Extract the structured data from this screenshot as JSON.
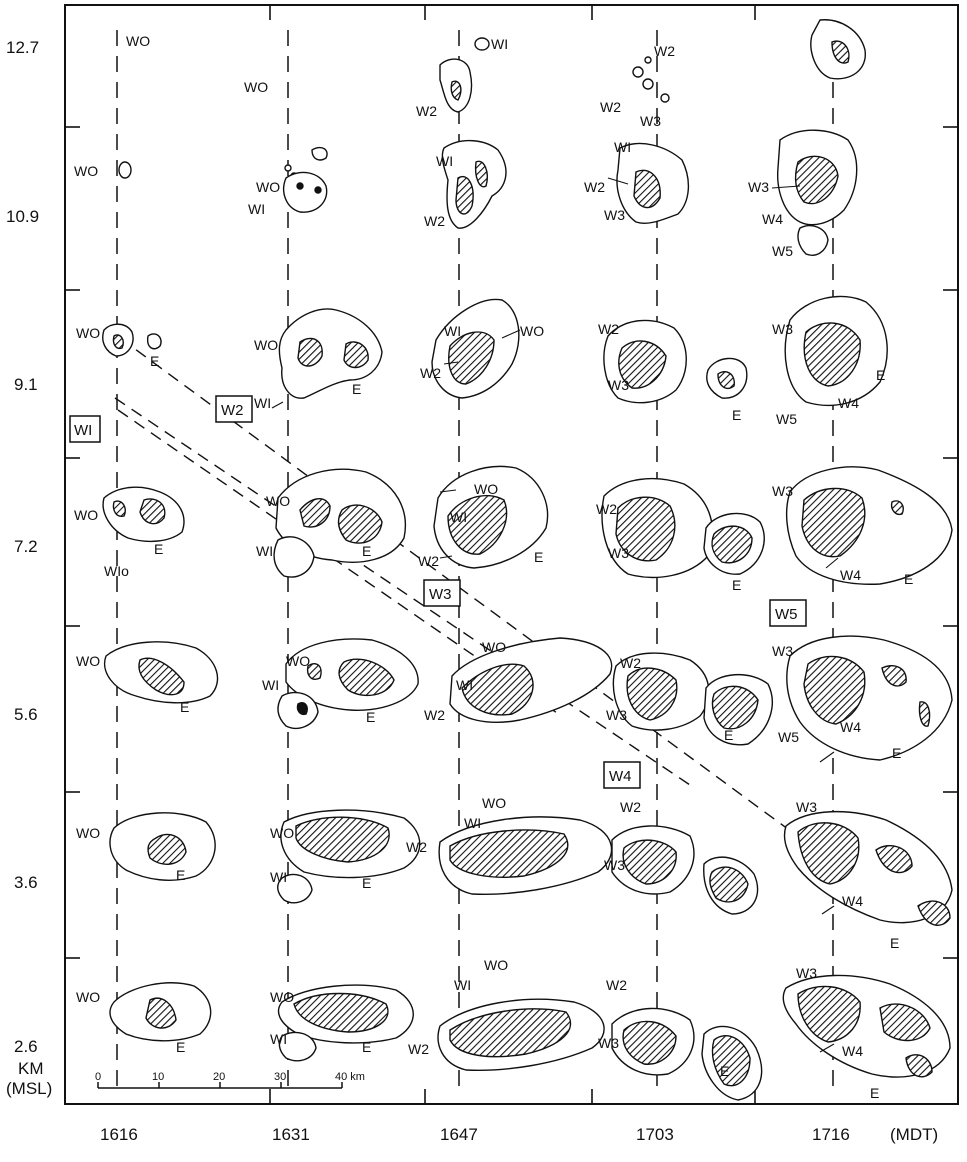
{
  "axis": {
    "heights": [
      "12.7",
      "10.9",
      "9.1",
      "7.2",
      "5.6",
      "3.6",
      "2.6"
    ],
    "unit_lines": [
      "KM",
      "(MSL)"
    ],
    "times": [
      "1616",
      "1631",
      "1647",
      "1703",
      "1716"
    ],
    "time_unit": "(MDT)"
  },
  "scale_bar": {
    "ticks": [
      "0",
      "10",
      "20",
      "30",
      "40 km"
    ]
  },
  "cell_labels": {
    "W0": "WO",
    "W1": "WI",
    "W1o": "WIo",
    "W2": "W2",
    "W3": "W3",
    "W4": "W4",
    "W5": "W5",
    "E": "E"
  },
  "boxed_labels": {
    "W1": "WI",
    "W2": "W2",
    "W3": "W3",
    "W4": "W4",
    "W5": "W5"
  },
  "colors": {
    "ink": "#111111",
    "background": "#ffffff"
  }
}
